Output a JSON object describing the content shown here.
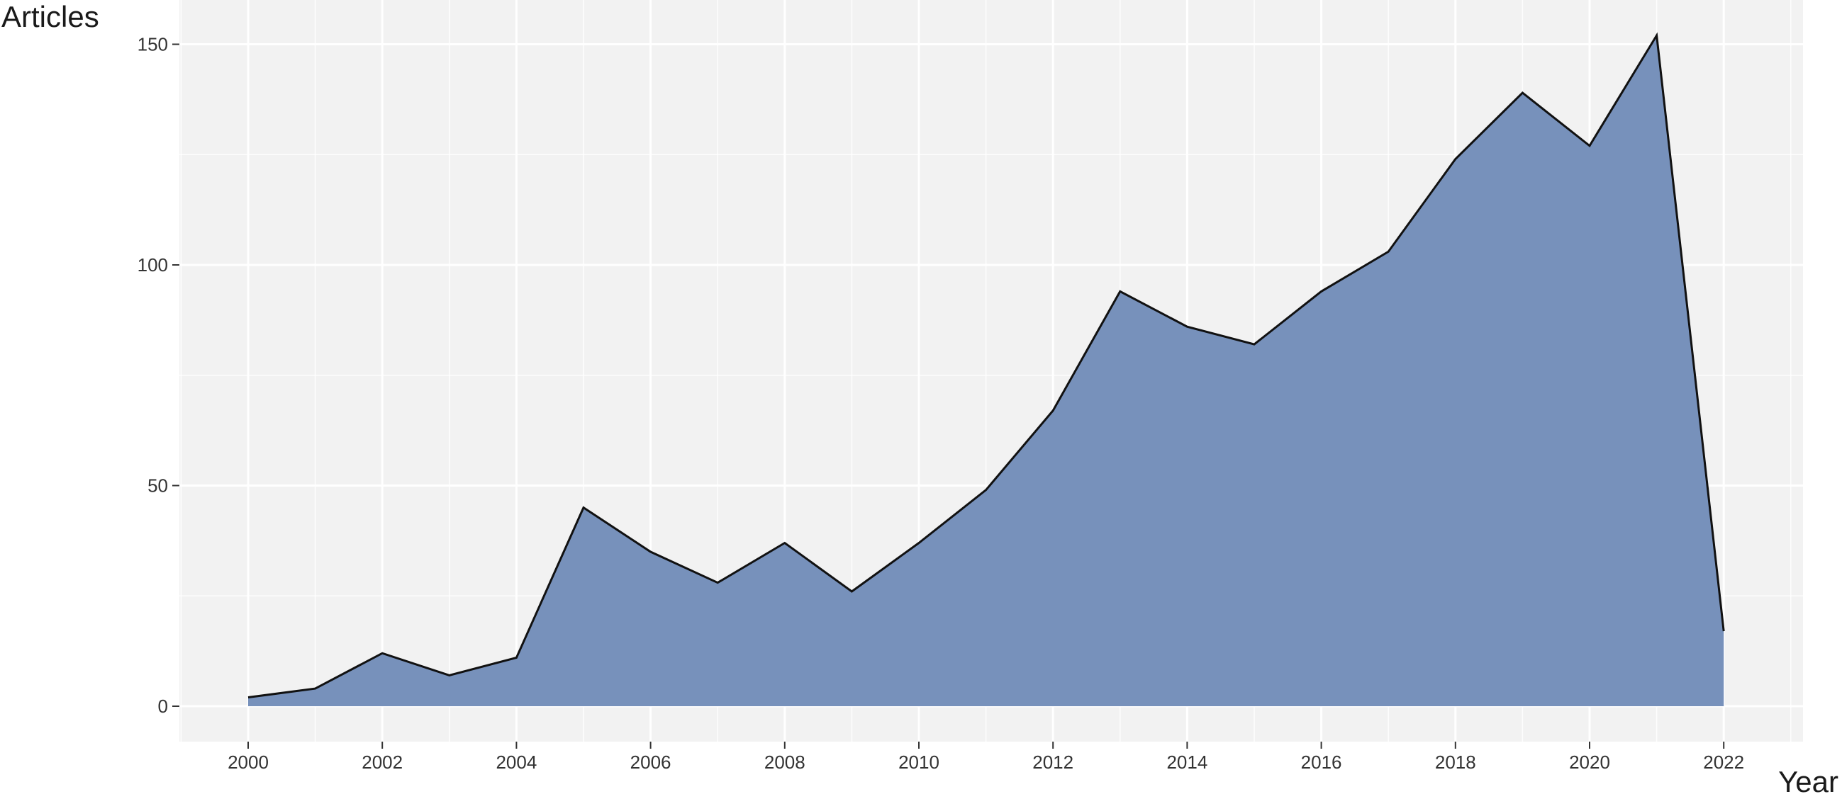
{
  "chart_data": {
    "type": "area",
    "title": "",
    "xlabel": "Year",
    "ylabel": "Articles",
    "x": [
      2000,
      2001,
      2002,
      2003,
      2004,
      2005,
      2006,
      2007,
      2008,
      2009,
      2010,
      2011,
      2012,
      2013,
      2014,
      2015,
      2016,
      2017,
      2018,
      2019,
      2020,
      2021,
      2022
    ],
    "values": [
      2,
      4,
      12,
      7,
      11,
      45,
      35,
      28,
      37,
      26,
      37,
      49,
      67,
      94,
      86,
      82,
      94,
      103,
      124,
      139,
      127,
      152,
      17
    ],
    "xlim": [
      1999,
      2023
    ],
    "ylim": [
      -7,
      156
    ],
    "x_ticks": [
      "2000",
      "2002",
      "2004",
      "2006",
      "2008",
      "2010",
      "2012",
      "2014",
      "2016",
      "2018",
      "2020",
      "2022"
    ],
    "y_ticks": [
      "0",
      "50",
      "100",
      "150"
    ],
    "grid": true,
    "legend": "none",
    "colors": {
      "panel_background": "#f2f2f2",
      "grid_major": "#ffffff",
      "area_fill": "#7791bb",
      "line": "#111111"
    }
  }
}
